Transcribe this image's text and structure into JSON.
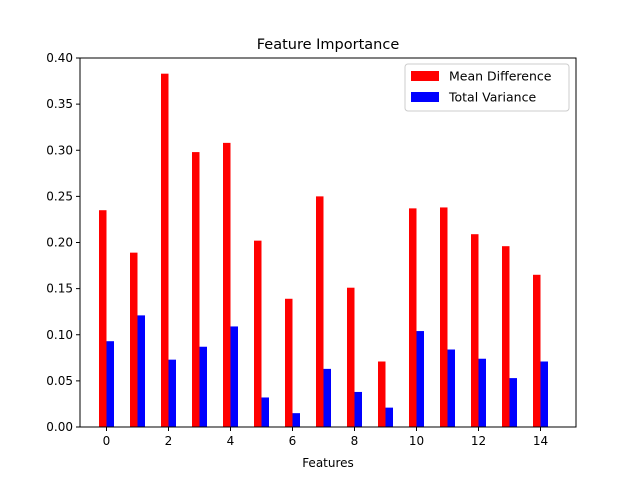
{
  "chart_data": {
    "type": "bar",
    "title": "Feature Importance",
    "xlabel": "Features",
    "ylabel": "",
    "categories": [
      0,
      1,
      2,
      3,
      4,
      5,
      6,
      7,
      8,
      9,
      10,
      11,
      12,
      13,
      14
    ],
    "xticks": [
      "0",
      "2",
      "4",
      "6",
      "8",
      "10",
      "12",
      "14"
    ],
    "yticks": [
      "0.00",
      "0.05",
      "0.10",
      "0.15",
      "0.20",
      "0.25",
      "0.30",
      "0.35",
      "0.40"
    ],
    "ylim": [
      0,
      0.4
    ],
    "legend_position": "top-right",
    "grid": false,
    "series": [
      {
        "name": "Mean Difference",
        "color": "#ff0000",
        "values": [
          0.235,
          0.189,
          0.383,
          0.298,
          0.308,
          0.202,
          0.139,
          0.25,
          0.151,
          0.071,
          0.237,
          0.238,
          0.209,
          0.196,
          0.165
        ]
      },
      {
        "name": "Total Variance",
        "color": "#0000ff",
        "values": [
          0.093,
          0.121,
          0.073,
          0.087,
          0.109,
          0.032,
          0.015,
          0.063,
          0.038,
          0.021,
          0.104,
          0.084,
          0.074,
          0.053,
          0.071
        ]
      }
    ]
  }
}
